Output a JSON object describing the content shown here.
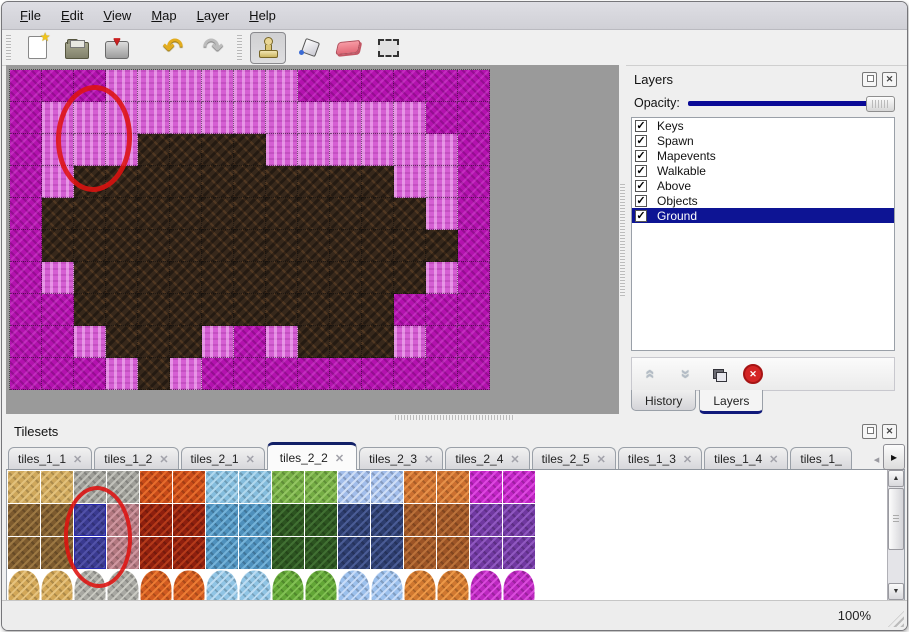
{
  "menu_bar": {
    "items": [
      {
        "label": "File"
      },
      {
        "label": "Edit"
      },
      {
        "label": "View"
      },
      {
        "label": "Map"
      },
      {
        "label": "Layer"
      },
      {
        "label": "Help"
      }
    ]
  },
  "toolbar": {
    "buttons": [
      {
        "name": "new-file",
        "icon": "new",
        "sep_before": "handle"
      },
      {
        "name": "open-file",
        "icon": "open"
      },
      {
        "name": "save-file",
        "icon": "save"
      },
      {
        "name": "undo",
        "icon": "undo",
        "sep_before": "gap"
      },
      {
        "name": "redo",
        "icon": "redo"
      },
      {
        "name": "stamp-tool",
        "icon": "stamp",
        "selected": true,
        "sep_before": "handle"
      },
      {
        "name": "fill-tool",
        "icon": "fill"
      },
      {
        "name": "eraser-tool",
        "icon": "eraser"
      },
      {
        "name": "select-tool",
        "icon": "select"
      }
    ]
  },
  "map_view": {
    "tile_size": 32,
    "columns": 15,
    "rows": 10,
    "grid": [
      "MMMPPPPPPMMMMMM",
      "MPPPPPPPPPPPPMM",
      "MPPPDDDDPPPPPPM",
      "MPDDDDDDDDDDPPM",
      "MDDDDDDDDDDDDPM",
      "MDDDDDDDDDDDDDM",
      "MPDDDDDDDDDDDPM",
      "MMDDDDDDDDDDMMM",
      "MMPDDDPMPDDDPMM",
      "MMMPDPMMMMMMMMM"
    ],
    "tile_legend": {
      "M": "magenta-rock",
      "P": "light-pink-rock",
      "D": "dark-earth"
    },
    "tile_colors": {
      "M": "#b312ae",
      "P": "#d55fd3",
      "D": "#37281b"
    },
    "annotation_color": "#de1210"
  },
  "layers_panel": {
    "title": "Layers",
    "opacity_label": "Opacity:",
    "opacity_percent": 100,
    "layers": [
      {
        "label": "Keys",
        "checked": true,
        "selected": false
      },
      {
        "label": "Spawn",
        "checked": true,
        "selected": false
      },
      {
        "label": "Mapevents",
        "checked": true,
        "selected": false
      },
      {
        "label": "Walkable",
        "checked": true,
        "selected": false
      },
      {
        "label": "Above",
        "checked": true,
        "selected": false
      },
      {
        "label": "Objects",
        "checked": true,
        "selected": false
      },
      {
        "label": "Ground",
        "checked": true,
        "selected": true
      }
    ],
    "action_buttons": [
      {
        "name": "raise-layer",
        "icon": "chevrons-up"
      },
      {
        "name": "lower-layer",
        "icon": "chevrons-down"
      },
      {
        "name": "duplicate-layer",
        "icon": "duplicate"
      },
      {
        "name": "delete-layer",
        "icon": "delete"
      }
    ],
    "bottom_tabs": [
      {
        "label": "History",
        "active": false
      },
      {
        "label": "Layers",
        "active": true
      }
    ],
    "selection_color": "#0d1494"
  },
  "tilesets_panel": {
    "title": "Tilesets",
    "tabs": [
      {
        "label": "tiles_1_1",
        "active": false
      },
      {
        "label": "tiles_1_2",
        "active": false
      },
      {
        "label": "tiles_2_1",
        "active": false
      },
      {
        "label": "tiles_2_2",
        "active": true
      },
      {
        "label": "tiles_2_3",
        "active": false
      },
      {
        "label": "tiles_2_4",
        "active": false
      },
      {
        "label": "tiles_2_5",
        "active": false
      },
      {
        "label": "tiles_1_3",
        "active": false
      },
      {
        "label": "tiles_1_4",
        "active": false
      },
      {
        "label": "tiles_1_",
        "active": false,
        "truncated": true
      }
    ],
    "palette_rows": [
      [
        "tan",
        "tan",
        "rock",
        "rock",
        "lava",
        "lava",
        "scale",
        "scale",
        "vine_light",
        "vine_light",
        "crystal_light",
        "crystal_light",
        "pebble",
        "pebble",
        "web_magenta",
        "web_magenta"
      ],
      [
        "bark",
        "bark",
        "selected",
        "mauve",
        "fire",
        "fire",
        "ice",
        "ice",
        "vine_dark",
        "vine_dark",
        "crystal_dark",
        "crystal_dark",
        "pebble_dark",
        "pebble_dark",
        "web_purple",
        "web_purple"
      ],
      [
        "bark",
        "bark",
        "selected",
        "mauve",
        "fire",
        "fire",
        "ice",
        "ice",
        "vine_dark",
        "vine_dark",
        "crystal_dark",
        "crystal_dark",
        "pebble_dark",
        "pebble_dark",
        "web_purple",
        "web_purple"
      ],
      [
        "tan_blob",
        "tan_blob",
        "rock_blob",
        "rock_blob",
        "lava_blob",
        "lava_blob",
        "scale_blob",
        "scale_blob",
        "vine_blob",
        "vine_blob",
        "crystal_blob",
        "crystal_blob",
        "pebble_blob",
        "pebble_blob",
        "web_blob",
        "web_blob"
      ]
    ],
    "palette_colors": {
      "tan": [
        "#cfa85c",
        "#e2c17c"
      ],
      "bark": [
        "#7c5a2e",
        "#9c7843"
      ],
      "rock": [
        "#9e9e98",
        "#c2c2bb"
      ],
      "selected": [
        "#3a3a90",
        "#5252a8"
      ],
      "mauve": [
        "#b27880",
        "#cf97a0"
      ],
      "lava": [
        "#c74a18",
        "#e66c2c"
      ],
      "fire": [
        "#8e1f0e",
        "#b43a1a"
      ],
      "scale": [
        "#85bddd",
        "#b0d8ee"
      ],
      "ice": [
        "#4e90bc",
        "#74b2d8"
      ],
      "vine_light": [
        "#74ac44",
        "#93c562"
      ],
      "vine_dark": [
        "#2c5420",
        "#417033"
      ],
      "crystal_light": [
        "#a2bdea",
        "#cfdef6"
      ],
      "crystal_dark": [
        "#2d3d6e",
        "#4a5c95"
      ],
      "pebble": [
        "#cc7030",
        "#e69049"
      ],
      "pebble_dark": [
        "#9c5426",
        "#ba713a"
      ],
      "web_magenta": [
        "#c024c4",
        "#dd48e0"
      ],
      "web_purple": [
        "#7038a0",
        "#9058c0"
      ],
      "tan_blob": [
        "#d2a758",
        "#e6c37e"
      ],
      "rock_blob": [
        "#a8a8a2",
        "#cacac2"
      ],
      "lava_blob": [
        "#d05a20",
        "#ec7c34"
      ],
      "scale_blob": [
        "#90c4e4",
        "#bcdcf2"
      ],
      "vine_blob": [
        "#62a636",
        "#82c054"
      ],
      "crystal_blob": [
        "#9cc0ec",
        "#c8dcf8"
      ],
      "pebble_blob": [
        "#d07830",
        "#ec9848"
      ],
      "web_blob": [
        "#bc28c0",
        "#da4cdc"
      ]
    },
    "annotation_color": "#de1210"
  },
  "status_bar": {
    "zoom_level": "100%"
  },
  "icons": {
    "dock_float": "float-window-icon",
    "dock_close": "close-icon",
    "tab_close_glyph": "✕",
    "scroll_up_glyph": "▲",
    "scroll_down_glyph": "▼",
    "tab_left_glyph": "◂",
    "tab_right_glyph": "▸",
    "check_glyph": "✓",
    "undo_glyph": "↶",
    "redo_glyph": "↷",
    "chevrons_glyph": "«",
    "delete_glyph": "✕"
  }
}
